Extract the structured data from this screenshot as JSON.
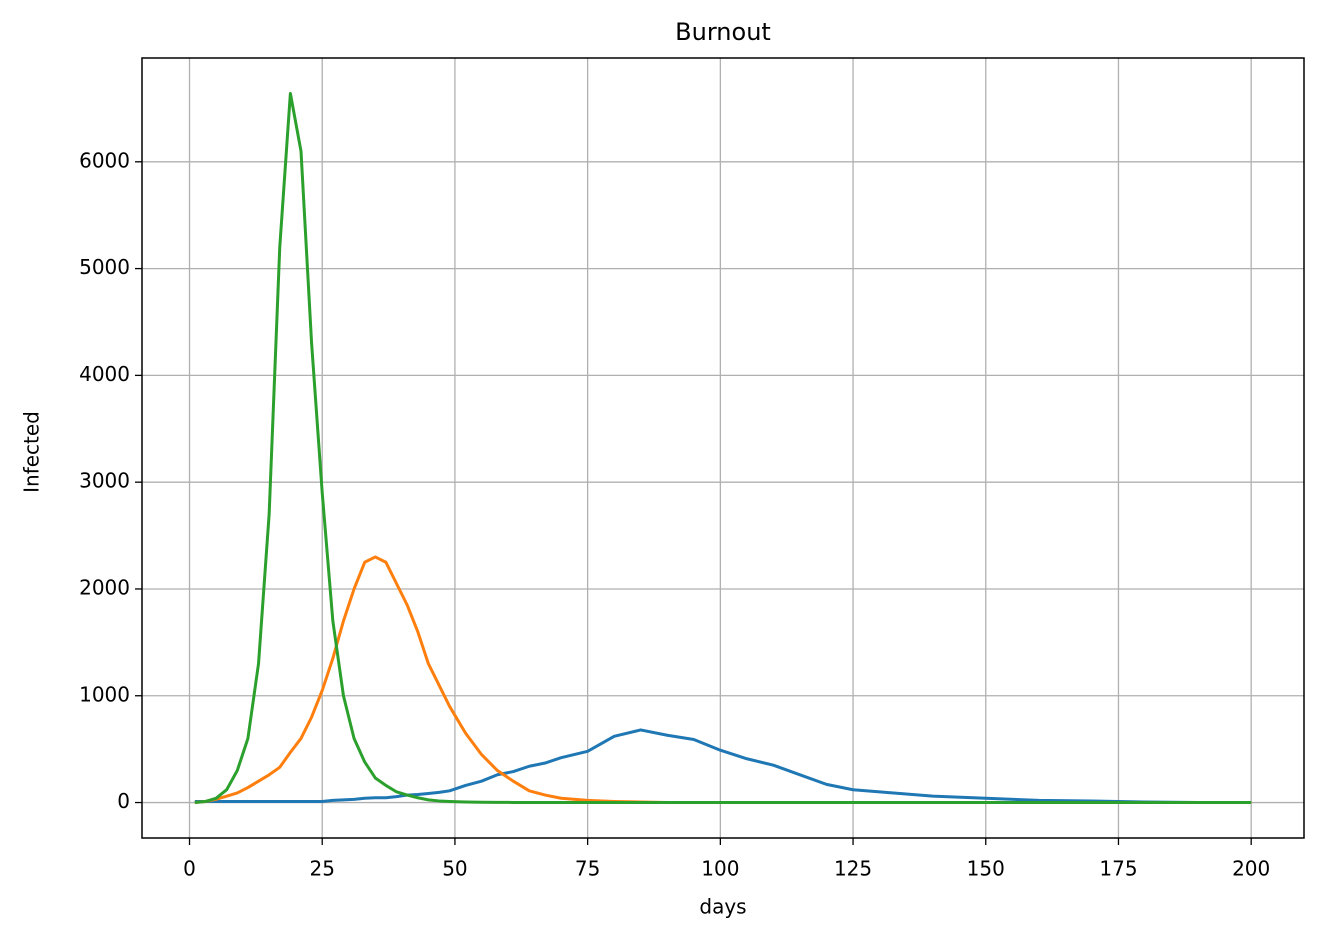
{
  "chart_data": {
    "type": "line",
    "title": "Burnout",
    "xlabel": "days",
    "ylabel": "Infected",
    "x": [
      1,
      3,
      5,
      7,
      9,
      11,
      13,
      15,
      17,
      19,
      21,
      23,
      25,
      27,
      29,
      31,
      33,
      35,
      37,
      39,
      41,
      43,
      45,
      47,
      49,
      52,
      55,
      58,
      61,
      64,
      67,
      70,
      75,
      80,
      85,
      90,
      95,
      100,
      105,
      110,
      115,
      120,
      125,
      130,
      140,
      150,
      160,
      170,
      180,
      190,
      200
    ],
    "series": [
      {
        "color": "#1f77b4",
        "values": [
          10,
          10,
          10,
          10,
          10,
          10,
          10,
          10,
          10,
          10,
          10,
          10,
          10,
          20,
          25,
          30,
          40,
          45,
          45,
          55,
          70,
          75,
          85,
          95,
          110,
          160,
          200,
          260,
          290,
          340,
          370,
          420,
          480,
          620,
          680,
          630,
          590,
          490,
          410,
          350,
          260,
          170,
          120,
          100,
          60,
          40,
          20,
          15,
          5,
          0,
          0
        ]
      },
      {
        "color": "#ff7f0e",
        "values": [
          0,
          10,
          30,
          60,
          90,
          140,
          200,
          260,
          330,
          470,
          600,
          800,
          1050,
          1350,
          1700,
          2000,
          2250,
          2300,
          2250,
          2050,
          1850,
          1600,
          1300,
          1100,
          900,
          650,
          450,
          300,
          200,
          110,
          70,
          40,
          20,
          10,
          5,
          0,
          0,
          0,
          0,
          0,
          0,
          0,
          0,
          0,
          0,
          0,
          0,
          0,
          0,
          0,
          0
        ]
      },
      {
        "color": "#2ca02c",
        "values": [
          0,
          10,
          40,
          120,
          300,
          600,
          1300,
          2700,
          5200,
          6640,
          6100,
          4300,
          2900,
          1700,
          1000,
          600,
          380,
          230,
          160,
          100,
          70,
          45,
          25,
          15,
          10,
          5,
          3,
          2,
          1,
          0,
          0,
          0,
          0,
          0,
          0,
          0,
          0,
          0,
          0,
          0,
          0,
          0,
          0,
          0,
          0,
          0,
          0,
          0,
          0,
          0,
          0
        ]
      }
    ],
    "xlim": [
      -8.95,
      209.95
    ],
    "xticks": [
      0,
      25,
      50,
      75,
      100,
      125,
      150,
      175,
      200
    ],
    "ylim": [
      -332,
      6972
    ],
    "yticks": [
      0,
      1000,
      2000,
      3000,
      4000,
      5000,
      6000
    ],
    "grid": true
  }
}
